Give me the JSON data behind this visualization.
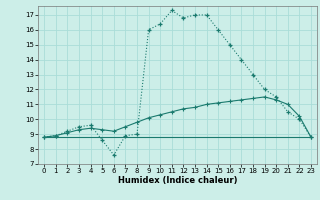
{
  "title": "",
  "xlabel": "Humidex (Indice chaleur)",
  "background_color": "#cceee8",
  "grid_color": "#aaddd8",
  "line_color": "#1a7a6e",
  "xlim": [
    -0.5,
    23.5
  ],
  "ylim": [
    7,
    17.6
  ],
  "yticks": [
    7,
    8,
    9,
    10,
    11,
    12,
    13,
    14,
    15,
    16,
    17
  ],
  "xticks": [
    0,
    1,
    2,
    3,
    4,
    5,
    6,
    7,
    8,
    9,
    10,
    11,
    12,
    13,
    14,
    15,
    16,
    17,
    18,
    19,
    20,
    21,
    22,
    23
  ],
  "series1_x": [
    0,
    1,
    2,
    3,
    4,
    5,
    6,
    7,
    8,
    9,
    10,
    11,
    12,
    13,
    14,
    15,
    16,
    17,
    18,
    19,
    20,
    21,
    22,
    23
  ],
  "series1_y": [
    8.8,
    8.9,
    9.2,
    9.5,
    9.6,
    8.6,
    7.6,
    8.9,
    9.0,
    16.0,
    16.4,
    17.3,
    16.8,
    17.0,
    17.0,
    16.0,
    15.0,
    14.0,
    13.0,
    12.0,
    11.5,
    10.5,
    10.0,
    8.8
  ],
  "series2_x": [
    0,
    1,
    2,
    3,
    4,
    5,
    6,
    7,
    8,
    9,
    10,
    11,
    12,
    13,
    14,
    15,
    16,
    17,
    18,
    19,
    20,
    21,
    22,
    23
  ],
  "series2_y": [
    8.8,
    8.9,
    9.1,
    9.3,
    9.4,
    9.3,
    9.2,
    9.5,
    9.8,
    10.1,
    10.3,
    10.5,
    10.7,
    10.8,
    11.0,
    11.1,
    11.2,
    11.3,
    11.4,
    11.5,
    11.3,
    11.0,
    10.2,
    8.8
  ],
  "series3_x": [
    0,
    1,
    2,
    3,
    4,
    5,
    6,
    7,
    8,
    9,
    10,
    11,
    12,
    13,
    14,
    15,
    16,
    17,
    18,
    19,
    20,
    21,
    22,
    23
  ],
  "series3_y": [
    8.8,
    8.8,
    8.8,
    8.8,
    8.8,
    8.8,
    8.8,
    8.8,
    8.8,
    8.8,
    8.8,
    8.8,
    8.8,
    8.8,
    8.8,
    8.8,
    8.8,
    8.8,
    8.8,
    8.8,
    8.8,
    8.8,
    8.8,
    8.8
  ]
}
